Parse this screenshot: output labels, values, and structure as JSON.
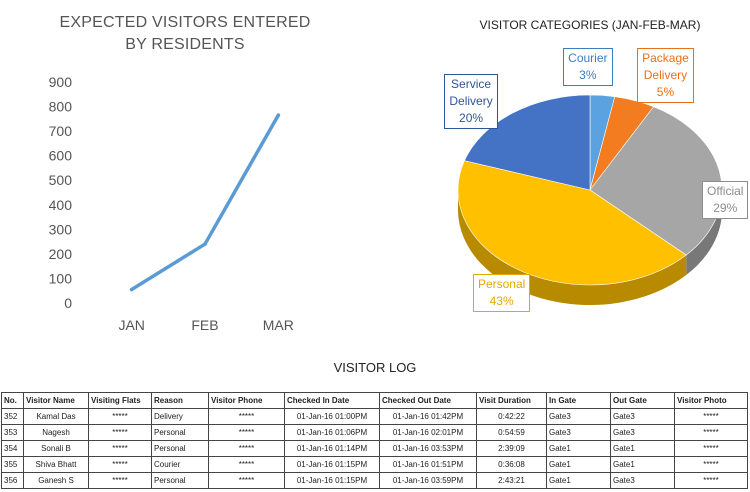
{
  "chart_data": [
    {
      "type": "line",
      "title_line1": "EXPECTED VISITORS ENTERED",
      "title_line2": "BY RESIDENTS",
      "categories": [
        "JAN",
        "FEB",
        "MAR"
      ],
      "series": [
        {
          "values": [
            55,
            240,
            765
          ]
        }
      ],
      "ylim": [
        0,
        900
      ],
      "yticks": [
        "0",
        "100",
        "200",
        "300",
        "400",
        "500",
        "600",
        "700",
        "800",
        "900"
      ],
      "grid": false,
      "color": "#5b9bd5"
    },
    {
      "type": "pie",
      "title": "VISITOR CATEGORIES (JAN-FEB-MAR)",
      "slices": [
        {
          "line1": "Courier",
          "line2": "",
          "pct_label": "3%",
          "value": 3,
          "color": "#5ba3e0",
          "text_color": "#3c7fc0"
        },
        {
          "line1": "Package",
          "line2": "Delivery",
          "pct_label": "5%",
          "value": 5,
          "color": "#f47c20",
          "text_color": "#e8701a"
        },
        {
          "line1": "Official",
          "line2": "",
          "pct_label": "29%",
          "value": 29,
          "color": "#a6a6a6",
          "text_color": "#8c8c8c"
        },
        {
          "line1": "Personal",
          "line2": "",
          "pct_label": "43%",
          "value": 43,
          "color": "#ffc000",
          "text_color": "#e6a800"
        },
        {
          "line1": "Service",
          "line2": "Delivery",
          "pct_label": "20%",
          "value": 20,
          "color": "#4472c4",
          "text_color": "#2f5597"
        }
      ]
    }
  ],
  "log": {
    "title": "VISITOR LOG",
    "headers": [
      "No.",
      "Visitor Name",
      "Visiting Flats",
      "Reason",
      "Visitor Phone",
      "Checked In Date",
      "Checked Out Date",
      "Visit Duration",
      "In Gate",
      "Out Gate",
      "Visitor Photo"
    ],
    "rows": [
      [
        "352",
        "Kamal Das",
        "*****",
        "Delivery",
        "*****",
        "01-Jan-16 01:00PM",
        "01-Jan-16 01:42PM",
        "0:42:22",
        "Gate3",
        "Gate3",
        "*****"
      ],
      [
        "353",
        "Nagesh",
        "*****",
        "Personal",
        "*****",
        "01-Jan-16 01:06PM",
        "01-Jan-16 02:01PM",
        "0:54:59",
        "Gate3",
        "Gate3",
        "*****"
      ],
      [
        "354",
        "Sonali B",
        "*****",
        "Personal",
        "*****",
        "01-Jan-16 01:14PM",
        "01-Jan-16 03:53PM",
        "2:39:09",
        "Gate1",
        "Gate1",
        "*****"
      ],
      [
        "355",
        "Shiva Bhatt",
        "*****",
        "Courier",
        "*****",
        "01-Jan-16 01:15PM",
        "01-Jan-16 01:51PM",
        "0:36:08",
        "Gate1",
        "Gate1",
        "*****"
      ],
      [
        "356",
        "Ganesh S",
        "*****",
        "Personal",
        "*****",
        "01-Jan-16 01:15PM",
        "01-Jan-16 03:59PM",
        "2:43:21",
        "Gate1",
        "Gate3",
        "*****"
      ]
    ]
  }
}
